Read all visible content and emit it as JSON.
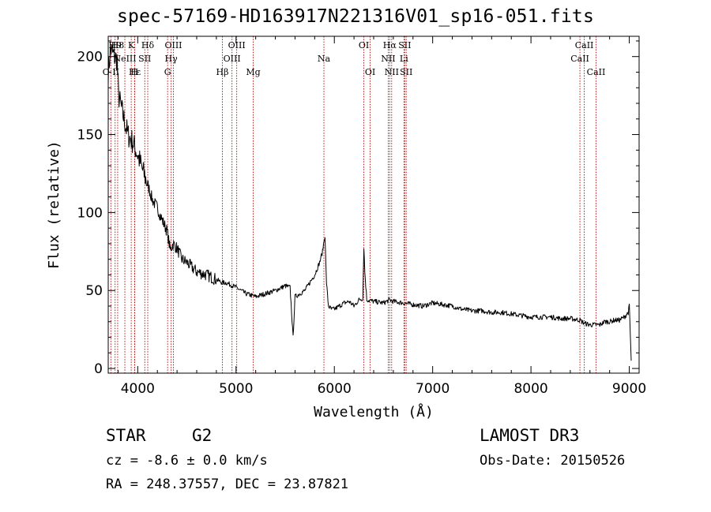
{
  "chart_data": {
    "type": "line",
    "title": "spec-57169-HD163917N221316V01_sp16-051.fits",
    "xlabel": "Wavelength (Å)",
    "ylabel": "Flux (relative)",
    "xlim": [
      3700,
      9100
    ],
    "ylim": [
      -3,
      213
    ],
    "x_ticks": [
      4000,
      5000,
      6000,
      7000,
      8000,
      9000
    ],
    "y_ticks": [
      0,
      50,
      100,
      150,
      200
    ],
    "grid": false,
    "series": [
      {
        "name": "spectrum",
        "x": [
          3700,
          3725,
          3760,
          3790,
          3805,
          3830,
          3860,
          3900,
          3950,
          4000,
          4050,
          4102,
          4150,
          4200,
          4250,
          4300,
          4330,
          4360,
          4400,
          4450,
          4500,
          4550,
          4600,
          4700,
          4800,
          4861,
          4900,
          5000,
          5100,
          5200,
          5300,
          5400,
          5500,
          5550,
          5580,
          5600,
          5650,
          5700,
          5750,
          5800,
          5850,
          5880,
          5895,
          5905,
          5920,
          5940,
          5970,
          6000,
          6050,
          6100,
          6150,
          6200,
          6250,
          6290,
          6300,
          6310,
          6330,
          6400,
          6500,
          6563,
          6600,
          6700,
          6800,
          6900,
          7000,
          7100,
          7200,
          7300,
          7400,
          7500,
          7600,
          7700,
          7800,
          7900,
          8000,
          8100,
          8200,
          8300,
          8400,
          8498,
          8542,
          8600,
          8662,
          8700,
          8750,
          8800,
          8850,
          8900,
          8950,
          8990,
          9000,
          9020
        ],
        "y": [
          190,
          205,
          200,
          198,
          175,
          168,
          160,
          150,
          145,
          137,
          127,
          118,
          108,
          103,
          95,
          88,
          76,
          80,
          77,
          70,
          68,
          65,
          62,
          60,
          57,
          55,
          55,
          52,
          48,
          46,
          48,
          50,
          53,
          52,
          20,
          46,
          48,
          50,
          55,
          60,
          68,
          75,
          82,
          85,
          55,
          40,
          38,
          38,
          40,
          42,
          43,
          40,
          44,
          45,
          78,
          62,
          44,
          43,
          42,
          44,
          43,
          42,
          41,
          40,
          42,
          41,
          40,
          38,
          37,
          37,
          36,
          36,
          35,
          34,
          33,
          33,
          33,
          32,
          32,
          31,
          29,
          28,
          28,
          28,
          30,
          30,
          31,
          31,
          33,
          36,
          40,
          5
        ]
      }
    ],
    "lines": [
      {
        "label": "O II",
        "wavelength": 3727,
        "row": 3
      },
      {
        "label": "H9",
        "wavelength": 3770,
        "row": 1
      },
      {
        "label": "H8",
        "wavelength": 3796,
        "row": 1
      },
      {
        "label": "NeIII",
        "wavelength": 3869,
        "row": 2
      },
      {
        "label": "K",
        "wavelength": 3934,
        "row": 1
      },
      {
        "label": "H",
        "wavelength": 3968,
        "row": 3
      },
      {
        "label": "Hε",
        "wavelength": 3970,
        "row": 3
      },
      {
        "label": "SII",
        "wavelength": 4072,
        "row": 2
      },
      {
        "label": "Hδ",
        "wavelength": 4102,
        "row": 1
      },
      {
        "label": "G",
        "wavelength": 4304,
        "row": 3
      },
      {
        "label": "Hγ",
        "wavelength": 4340,
        "row": 2
      },
      {
        "label": "OIII",
        "wavelength": 4363,
        "row": 1
      },
      {
        "label": "Hβ",
        "wavelength": 4861,
        "row": 3
      },
      {
        "label": "OIII",
        "wavelength": 4959,
        "row": 2
      },
      {
        "label": "OIII",
        "wavelength": 5007,
        "row": 1
      },
      {
        "label": "Mg",
        "wavelength": 5175,
        "row": 3
      },
      {
        "label": "Na",
        "wavelength": 5894,
        "row": 2
      },
      {
        "label": "OI",
        "wavelength": 6300,
        "row": 1
      },
      {
        "label": "OI",
        "wavelength": 6364,
        "row": 3
      },
      {
        "label": "NII",
        "wavelength": 6548,
        "row": 2
      },
      {
        "label": "Hα",
        "wavelength": 6563,
        "row": 1
      },
      {
        "label": "NII",
        "wavelength": 6583,
        "row": 3
      },
      {
        "label": "Li",
        "wavelength": 6708,
        "row": 2
      },
      {
        "label": "SII",
        "wavelength": 6716,
        "row": 1
      },
      {
        "label": "SII",
        "wavelength": 6731,
        "row": 3
      },
      {
        "label": "CaII",
        "wavelength": 8498,
        "row": 2
      },
      {
        "label": "CaII",
        "wavelength": 8542,
        "row": 1
      },
      {
        "label": "CaII",
        "wavelength": 8662,
        "row": 3
      }
    ]
  },
  "info": {
    "object_class": "STAR",
    "subclass": "G2",
    "survey": "LAMOST DR3",
    "redshift": "cz = -8.6 ± 0.0 km/s",
    "obs_date": "Obs-Date: 20150526",
    "coords": "RA = 248.37557, DEC =  23.87821"
  },
  "colors": {
    "spectrum": "#000000",
    "line_marker": "#b00000",
    "axes": "#000000",
    "background": "#ffffff"
  }
}
